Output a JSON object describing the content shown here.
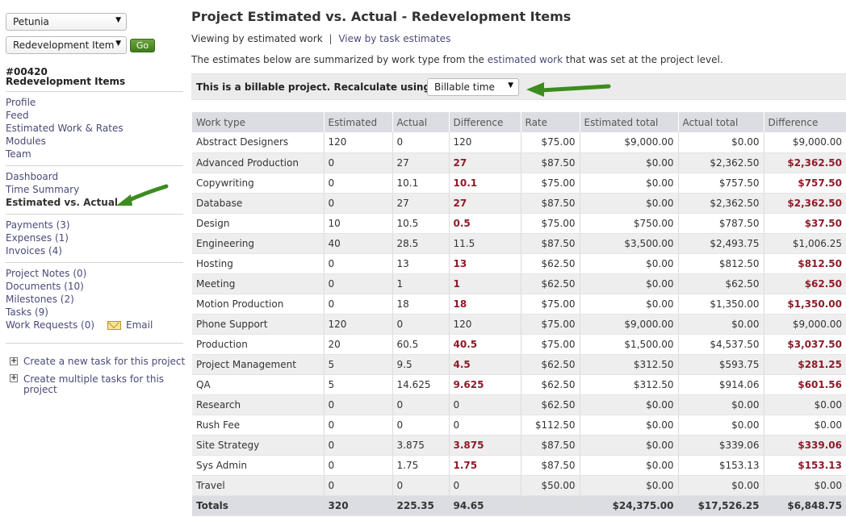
{
  "sidebar": {
    "project_select": "Petunia",
    "item_select": "Redevelopment Item",
    "go_label": "Go",
    "project_number": "#00420",
    "project_name": "Redevelopment Items",
    "group1": [
      "Profile",
      "Feed",
      "Estimated Work & Rates",
      "Modules",
      "Team"
    ],
    "group2": [
      "Dashboard",
      "Time Summary",
      "Estimated vs. Actual"
    ],
    "group3": [
      "Payments (3)",
      "Expenses (1)",
      "Invoices (4)"
    ],
    "group4": [
      "Project Notes (0)",
      "Documents (10)",
      "Milestones (2)",
      "Tasks (9)",
      "Work Requests (0)"
    ],
    "email_label": "Email",
    "create_task": "Create a new task for this project",
    "create_multiple_line1": "Create multiple tasks for this",
    "create_multiple_line2": "project"
  },
  "main": {
    "title": "Project Estimated vs. Actual - Redevelopment Items",
    "viewing_prefix": "Viewing by estimated work",
    "view_by_task_link": "View by task estimates",
    "summary_before": "The estimates below are summarized by work type from the ",
    "summary_link": "estimated work",
    "summary_after": " that was set at the project level.",
    "billable_label": "This is a billable project. Recalculate using:",
    "recalc_value": "Billable time"
  },
  "table": {
    "headers": [
      "Work type",
      "Estimated",
      "Actual",
      "Difference",
      "Rate",
      "Estimated total",
      "Actual total",
      "Difference"
    ],
    "rows": [
      [
        "Abstract Designers",
        "120",
        "0",
        "120",
        "$75.00",
        "$9,000.00",
        "$0.00",
        "$9,000.00",
        false
      ],
      [
        "Advanced Production",
        "0",
        "27",
        "27",
        "$87.50",
        "$0.00",
        "$2,362.50",
        "$2,362.50",
        true
      ],
      [
        "Copywriting",
        "0",
        "10.1",
        "10.1",
        "$75.00",
        "$0.00",
        "$757.50",
        "$757.50",
        true
      ],
      [
        "Database",
        "0",
        "27",
        "27",
        "$87.50",
        "$0.00",
        "$2,362.50",
        "$2,362.50",
        true
      ],
      [
        "Design",
        "10",
        "10.5",
        "0.5",
        "$75.00",
        "$750.00",
        "$787.50",
        "$37.50",
        true
      ],
      [
        "Engineering",
        "40",
        "28.5",
        "11.5",
        "$87.50",
        "$3,500.00",
        "$2,493.75",
        "$1,006.25",
        false
      ],
      [
        "Hosting",
        "0",
        "13",
        "13",
        "$62.50",
        "$0.00",
        "$812.50",
        "$812.50",
        true
      ],
      [
        "Meeting",
        "0",
        "1",
        "1",
        "$62.50",
        "$0.00",
        "$62.50",
        "$62.50",
        true
      ],
      [
        "Motion Production",
        "0",
        "18",
        "18",
        "$75.00",
        "$0.00",
        "$1,350.00",
        "$1,350.00",
        true
      ],
      [
        "Phone Support",
        "120",
        "0",
        "120",
        "$75.00",
        "$9,000.00",
        "$0.00",
        "$9,000.00",
        false
      ],
      [
        "Production",
        "20",
        "60.5",
        "40.5",
        "$75.00",
        "$1,500.00",
        "$4,537.50",
        "$3,037.50",
        true
      ],
      [
        "Project Management",
        "5",
        "9.5",
        "4.5",
        "$62.50",
        "$312.50",
        "$593.75",
        "$281.25",
        true
      ],
      [
        "QA",
        "5",
        "14.625",
        "9.625",
        "$62.50",
        "$312.50",
        "$914.06",
        "$601.56",
        true
      ],
      [
        "Research",
        "0",
        "0",
        "0",
        "$62.50",
        "$0.00",
        "$0.00",
        "$0.00",
        false
      ],
      [
        "Rush Fee",
        "0",
        "0",
        "0",
        "$112.50",
        "$0.00",
        "$0.00",
        "$0.00",
        false
      ],
      [
        "Site Strategy",
        "0",
        "3.875",
        "3.875",
        "$87.50",
        "$0.00",
        "$339.06",
        "$339.06",
        true
      ],
      [
        "Sys Admin",
        "0",
        "1.75",
        "1.75",
        "$87.50",
        "$0.00",
        "$153.13",
        "$153.13",
        true
      ],
      [
        "Travel",
        "0",
        "0",
        "0",
        "$50.00",
        "$0.00",
        "$0.00",
        "$0.00",
        false
      ]
    ],
    "totals": [
      "Totals",
      "320",
      "225.35",
      "94.65",
      "",
      "$24,375.00",
      "$17,526.25",
      "$6,848.75"
    ]
  },
  "colors": {
    "link": "#4a4a7a",
    "negative": "#8e1b2a",
    "header_bg": "#dcdde3",
    "arrow": "#3d8c1f",
    "go_button": "#4f8c28"
  },
  "icons": [
    "chevron-down-icon",
    "envelope-icon",
    "plus-box-icon",
    "green-arrow-icon"
  ]
}
